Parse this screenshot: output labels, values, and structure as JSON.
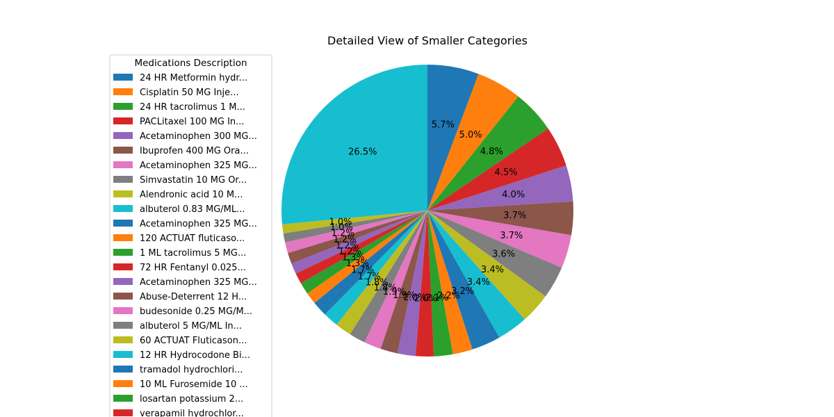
{
  "chart_data": {
    "type": "pie",
    "title": "Detailed View of Smaller Categories",
    "legend": {
      "title": "Medications Description",
      "placement": "left"
    },
    "colors": [
      "#1f77b4",
      "#ff7f0e",
      "#2ca02c",
      "#d62728",
      "#9467bd",
      "#8c564b",
      "#e377c2",
      "#7f7f7f",
      "#bcbd22",
      "#17becf"
    ],
    "start": "top, clockwise",
    "slices": [
      {
        "label": "24 HR Metformin hydr...",
        "value": 5.7,
        "pct": "5.7%"
      },
      {
        "label": "Cisplatin 50 MG Inje...",
        "value": 5.0,
        "pct": "5.0%"
      },
      {
        "label": "24 HR tacrolimus 1 M...",
        "value": 4.8,
        "pct": "4.8%"
      },
      {
        "label": "PACLitaxel 100 MG In...",
        "value": 4.5,
        "pct": "4.5%"
      },
      {
        "label": "Acetaminophen 300 MG...",
        "value": 4.0,
        "pct": "4.0%"
      },
      {
        "label": "Ibuprofen 400 MG Ora...",
        "value": 3.7,
        "pct": "3.7%"
      },
      {
        "label": "Acetaminophen 325 MG...",
        "value": 3.7,
        "pct": "3.7%"
      },
      {
        "label": "Simvastatin 10 MG Or...",
        "value": 3.6,
        "pct": "3.6%"
      },
      {
        "label": "Alendronic acid 10 M...",
        "value": 3.4,
        "pct": "3.4%"
      },
      {
        "label": "albuterol 0.83 MG/ML...",
        "value": 3.4,
        "pct": "3.4%"
      },
      {
        "label": "Acetaminophen 325 MG...",
        "value": 3.2,
        "pct": "3.2%"
      },
      {
        "label": "120 ACTUAT fluticaso...",
        "value": 2.2,
        "pct": "2.2%"
      },
      {
        "label": "1 ML tacrolimus 5 MG...",
        "value": 2.1,
        "pct": "2.1%"
      },
      {
        "label": "72 HR Fentanyl 0.025...",
        "value": 2.0,
        "pct": "2.0%"
      },
      {
        "label": "Acetaminophen 325 MG...",
        "value": 2.0,
        "pct": "2.0%"
      },
      {
        "label": "Abuse-Deterrent 12 H...",
        "value": 1.9,
        "pct": "1.9%"
      },
      {
        "label": "budesonide 0.25 MG/M...",
        "value": 1.9,
        "pct": "1.9%"
      },
      {
        "label": "albuterol 5 MG/ML In...",
        "value": 1.8,
        "pct": "1.8%"
      },
      {
        "label": "60 ACTUAT Fluticason...",
        "value": 1.8,
        "pct": "1.8%"
      },
      {
        "label": "12 HR Hydrocodone Bi...",
        "value": 1.7,
        "pct": "1.7%"
      },
      {
        "label": "tramadol hydrochlori...",
        "value": 1.7,
        "pct": "1.7%"
      },
      {
        "label": "10 ML Furosemide 10 ...",
        "value": 1.3,
        "pct": "1.3%"
      },
      {
        "label": "losartan potassium 2...",
        "value": 1.3,
        "pct": "1.3%"
      },
      {
        "label": "verapamil hydrochlor...",
        "value": 1.2,
        "pct": "1.2%"
      },
      {
        "label": "",
        "value": 1.2,
        "pct": "1.2%"
      },
      {
        "label": "",
        "value": 1.2,
        "pct": "1.2%"
      },
      {
        "label": "",
        "value": 1.2,
        "pct": "1.2%"
      },
      {
        "label": "",
        "value": 1.0,
        "pct": "1.0%"
      },
      {
        "label": "",
        "value": 1.0,
        "pct": "1.0%"
      },
      {
        "label": "albuterol 0.83 MG/ML...",
        "value": 26.5,
        "pct": "26.5%"
      }
    ]
  }
}
